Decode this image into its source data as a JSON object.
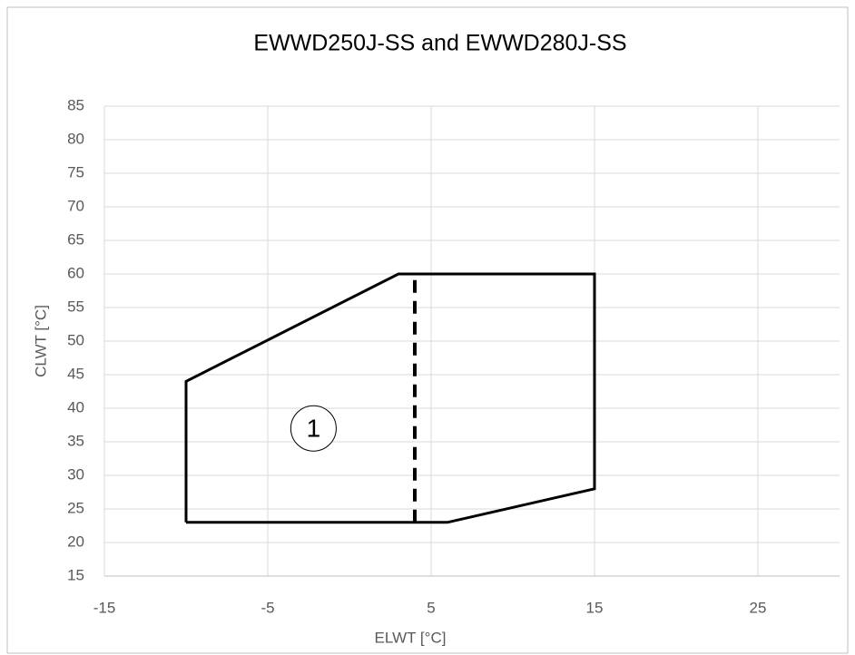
{
  "chart_data": {
    "type": "line",
    "title": "EWWD250J-SS and EWWD280J-SS",
    "x_label": "ELWT [°C]",
    "y_label": "CLWT [°C]",
    "xlim": [
      -15,
      30
    ],
    "xticks": [
      -15,
      -5,
      5,
      15,
      25
    ],
    "ylim": [
      15,
      85
    ],
    "yticks": [
      15,
      20,
      25,
      30,
      35,
      40,
      45,
      50,
      55,
      60,
      65,
      70,
      75,
      80,
      85
    ],
    "grid": true,
    "series": [
      {
        "color": "#000000",
        "dash": false,
        "x": [
          -10,
          -10,
          3,
          15,
          15,
          6,
          -10
        ],
        "values": [
          23,
          44,
          60,
          60,
          28,
          23,
          23
        ]
      },
      {
        "color": "#000000",
        "dash": true,
        "x": [
          4,
          4
        ],
        "values": [
          23,
          60
        ]
      }
    ],
    "annotations": [
      {
        "text": "1",
        "x": -2.2,
        "y": 37
      }
    ]
  }
}
